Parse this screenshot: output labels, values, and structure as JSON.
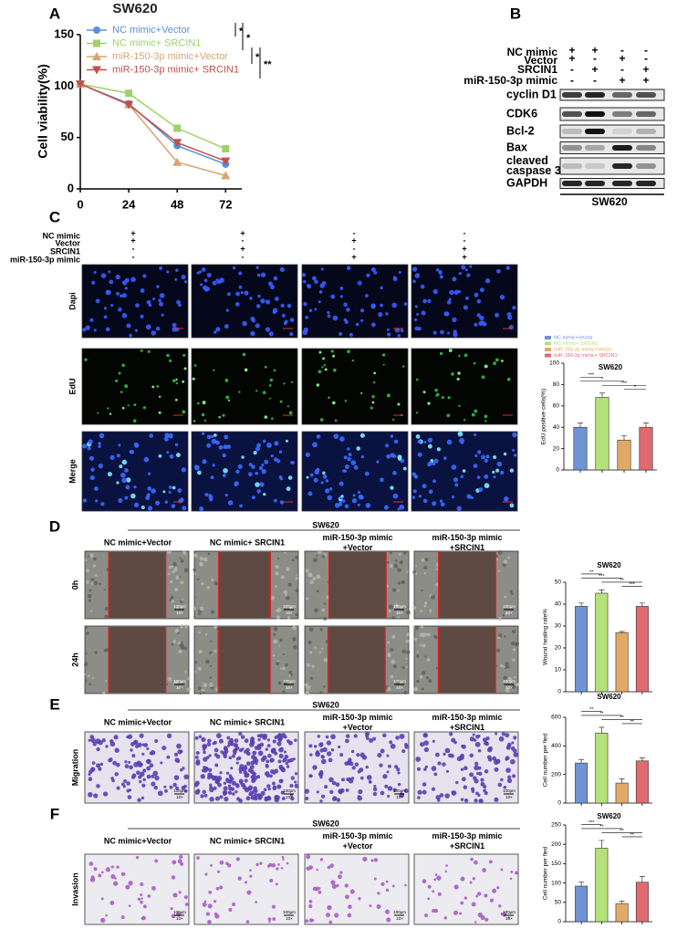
{
  "figure": {
    "panel_labels": [
      "A",
      "B",
      "C",
      "D",
      "E",
      "F"
    ],
    "blot": {
      "conditions": [
        {
          "name": "NC mimic",
          "signs": [
            "+",
            "+",
            "-",
            "-"
          ]
        },
        {
          "name": "Vector",
          "signs": [
            "+",
            "-",
            "+",
            "-"
          ]
        },
        {
          "name": "SRCIN1",
          "signs": [
            "-",
            "+",
            "-",
            "+"
          ]
        },
        {
          "name": "miR-150-3p mimic",
          "signs": [
            "-",
            "-",
            "+",
            "+"
          ]
        }
      ],
      "proteins": [
        [
          "cyclin D1"
        ],
        [
          "CDK6"
        ],
        [
          "Bcl-2"
        ],
        [
          "Bax"
        ],
        [
          "cleaved",
          "caspase 3"
        ],
        [
          "GAPDH"
        ]
      ],
      "cell_line": "SW620"
    },
    "edu": {
      "conditions": [
        {
          "name": "NC mimic",
          "signs": [
            "+",
            "+",
            "-",
            "-"
          ]
        },
        {
          "name": "Vector",
          "signs": [
            "+",
            "-",
            "+",
            "-"
          ]
        },
        {
          "name": "SRCIN1",
          "signs": [
            "-",
            "+",
            "-",
            "+"
          ]
        },
        {
          "name": "miR-150-3p mimic",
          "signs": [
            "-",
            "-",
            "+",
            "+"
          ]
        }
      ],
      "rows": [
        "Dapi",
        "EdU",
        "Merge"
      ]
    },
    "wound": {
      "header": "SW620",
      "rows": [
        "0h",
        "24h"
      ]
    },
    "migration": {
      "header": "SW620",
      "rows": [
        "Migration"
      ]
    },
    "invasion": {
      "header": "SW620",
      "rows": [
        "Invasion"
      ]
    },
    "columns": [
      [
        "NC mimic+Vector"
      ],
      [
        "NC mimic+ SRCIN1"
      ],
      [
        "miR-150-3p mimic",
        "+Vector"
      ],
      [
        "miR-150-3p mimic",
        "+SRCIN1"
      ]
    ],
    "scale_bar": "100μm",
    "magnification": "10×"
  },
  "chart_data": [
    {
      "type": "line",
      "title": "SW620",
      "ylabel": "Cell viability(%)",
      "x": [
        0,
        24,
        48,
        72
      ],
      "xlim": [
        0,
        80
      ],
      "xticks": [
        0,
        24,
        48,
        72
      ],
      "ylim": [
        0,
        150
      ],
      "yticks": [
        0,
        50,
        100,
        150
      ],
      "series": [
        {
          "name": "NC mimic+Vector",
          "color": "#5b8fd8",
          "values": [
            102,
            83,
            42,
            24
          ]
        },
        {
          "name": "NC mimic+ SRCIN1",
          "color": "#9fd16a",
          "values": [
            102,
            93,
            59,
            39
          ]
        },
        {
          "name": "miR-150-3p mimic+Vector",
          "color": "#d8a470",
          "values": [
            102,
            82,
            26,
            13
          ]
        },
        {
          "name": "miR-150-3p mimic+ SRCIN1",
          "color": "#c0504d",
          "values": [
            102,
            82,
            45,
            27
          ]
        }
      ],
      "significance": [
        "*",
        "*",
        "*",
        "**"
      ]
    },
    {
      "type": "bar",
      "title": "SW620",
      "ylabel": "EdU positive cells(%)",
      "categories": [
        "NC mimic+Vector",
        "NC mimic+ SRCIN1",
        "miR-150-3p mimic+Vector",
        "miR-150-3p mimic+ SRCIN1"
      ],
      "values": [
        40,
        68,
        28,
        40
      ],
      "errors": [
        4,
        4,
        4,
        4
      ],
      "colors": [
        "#6f93d3",
        "#b5e17b",
        "#e0aa66",
        "#e06a70"
      ],
      "ylim": [
        0,
        100
      ],
      "yticks": [
        0,
        20,
        40,
        60,
        80,
        100
      ],
      "significance": [
        "***",
        "*",
        "***",
        "*"
      ]
    },
    {
      "type": "bar",
      "title": "SW620",
      "ylabel": "Wound healing rate%",
      "values": [
        39,
        45,
        27,
        39
      ],
      "errors": [
        1.5,
        1.5,
        0.5,
        1.5
      ],
      "colors": [
        "#6f93d3",
        "#b5e17b",
        "#e0aa66",
        "#e06a70"
      ],
      "ylim": [
        0,
        50
      ],
      "yticks": [
        0,
        10,
        20,
        30,
        40,
        50
      ],
      "significance": [
        "**",
        "***",
        "**",
        "***"
      ]
    },
    {
      "type": "bar",
      "title": "SW620",
      "ylabel": "Cell number per fied",
      "values": [
        280,
        490,
        140,
        295
      ],
      "errors": [
        25,
        40,
        30,
        20
      ],
      "colors": [
        "#6f93d3",
        "#b5e17b",
        "#e0aa66",
        "#e06a70"
      ],
      "ylim": [
        0,
        600
      ],
      "yticks": [
        0,
        200,
        400,
        600
      ],
      "significance": [
        "**",
        "**",
        "**",
        "**"
      ]
    },
    {
      "type": "bar",
      "title": "SW620",
      "ylabel": "Cell number per fied",
      "values": [
        92,
        190,
        47,
        102
      ],
      "errors": [
        10,
        20,
        6,
        15
      ],
      "colors": [
        "#6f93d3",
        "#b5e17b",
        "#e0aa66",
        "#e06a70"
      ],
      "ylim": [
        0,
        250
      ],
      "yticks": [
        0,
        50,
        100,
        150,
        200,
        250
      ],
      "significance": [
        "***",
        "**",
        "**",
        "**"
      ]
    }
  ]
}
